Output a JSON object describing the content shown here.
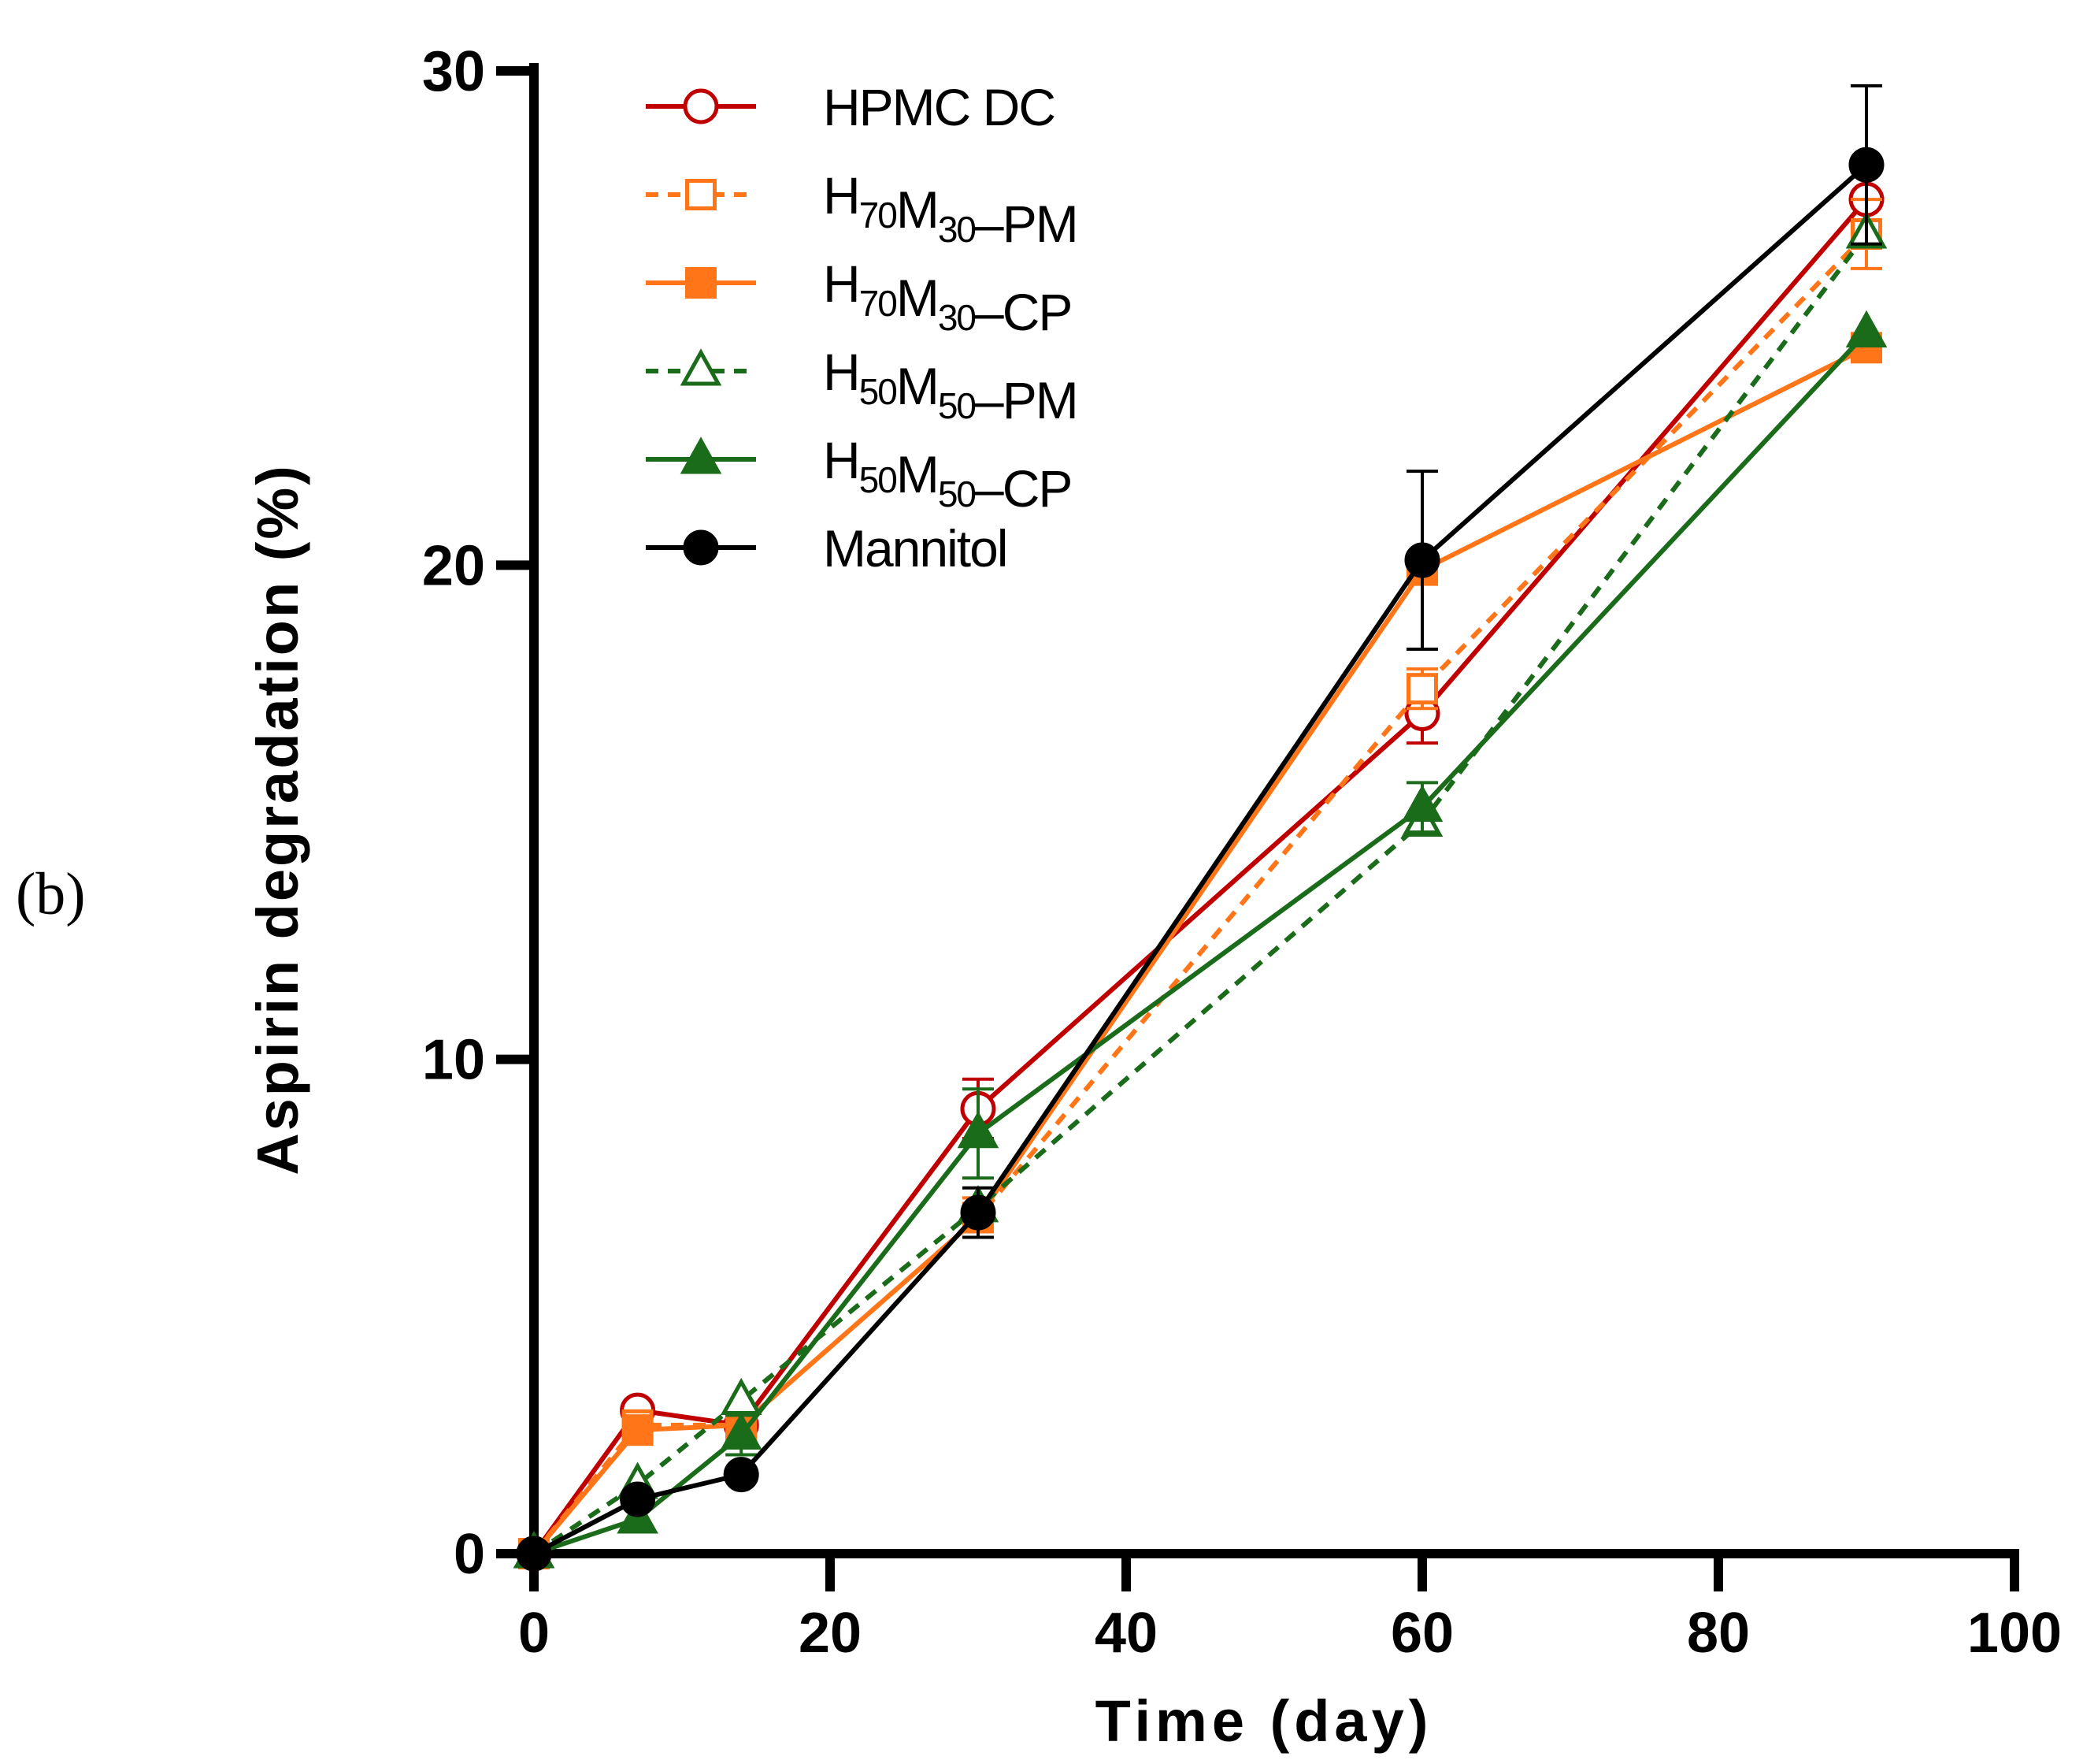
{
  "panel_label": "(b)",
  "chart_data": {
    "type": "line",
    "title": "",
    "xlabel": "Time (day)",
    "ylabel": "Aspirin degradation (%)",
    "xlim": [
      0,
      100
    ],
    "ylim": [
      0,
      30
    ],
    "xticks": [
      0,
      20,
      40,
      60,
      80,
      100
    ],
    "yticks": [
      0,
      10,
      20,
      30
    ],
    "x": [
      0,
      7,
      14,
      30,
      60,
      90
    ],
    "legend_position": "top-left",
    "series": [
      {
        "name": "HPMC DC",
        "label_parts": [
          {
            "t": "HPMC DC"
          }
        ],
        "color": "#c00000",
        "marker": "circle-open",
        "dash": false,
        "values": [
          0,
          2.9,
          2.6,
          9.0,
          17.0,
          27.4
        ],
        "errors": [
          0,
          0,
          0,
          0.6,
          0.6,
          0
        ]
      },
      {
        "name": "H70M30–PM",
        "label_parts": [
          {
            "t": "H"
          },
          {
            "t": "70",
            "sub": true
          },
          {
            "t": "M"
          },
          {
            "t": "30",
            "sub": true
          },
          {
            "t": "–PM"
          }
        ],
        "color": "#ff7518",
        "marker": "square-open",
        "dash": true,
        "values": [
          0,
          2.6,
          2.6,
          6.8,
          17.5,
          26.7
        ],
        "errors": [
          0,
          0,
          0,
          0.4,
          0.4,
          0.7
        ]
      },
      {
        "name": "H70M30–CP",
        "label_parts": [
          {
            "t": "H"
          },
          {
            "t": "70",
            "sub": true
          },
          {
            "t": "M"
          },
          {
            "t": "30",
            "sub": true
          },
          {
            "t": "–CP"
          }
        ],
        "color": "#ff7518",
        "marker": "square-filled",
        "dash": false,
        "values": [
          0,
          2.5,
          2.6,
          6.8,
          19.9,
          24.4
        ],
        "errors": [
          0,
          0,
          0,
          0,
          0,
          0
        ]
      },
      {
        "name": "H50M50–PM",
        "label_parts": [
          {
            "t": "H"
          },
          {
            "t": "50",
            "sub": true
          },
          {
            "t": "M"
          },
          {
            "t": "50",
            "sub": true
          },
          {
            "t": "–PM"
          }
        ],
        "color": "#1a6b1a",
        "marker": "triangle-open",
        "dash": true,
        "values": [
          0,
          1.4,
          3.1,
          7.0,
          14.8,
          26.7
        ],
        "errors": [
          0,
          0,
          0,
          0,
          0,
          0
        ]
      },
      {
        "name": "H50M50–CP",
        "label_parts": [
          {
            "t": "H"
          },
          {
            "t": "50",
            "sub": true
          },
          {
            "t": "M"
          },
          {
            "t": "50",
            "sub": true
          },
          {
            "t": "–CP"
          }
        ],
        "color": "#1a6b1a",
        "marker": "triangle-filled",
        "dash": false,
        "values": [
          0,
          0.7,
          2.4,
          8.5,
          15.1,
          24.7
        ],
        "errors": [
          0,
          0,
          0.4,
          0.9,
          0.5,
          0
        ]
      },
      {
        "name": "Mannitol",
        "label_parts": [
          {
            "t": "Mannitol"
          }
        ],
        "color": "#000000",
        "marker": "circle-filled",
        "dash": false,
        "values": [
          0,
          1.1,
          1.6,
          6.9,
          20.1,
          28.1
        ],
        "errors": [
          0,
          0,
          0,
          0.5,
          1.8,
          1.6
        ]
      }
    ]
  }
}
